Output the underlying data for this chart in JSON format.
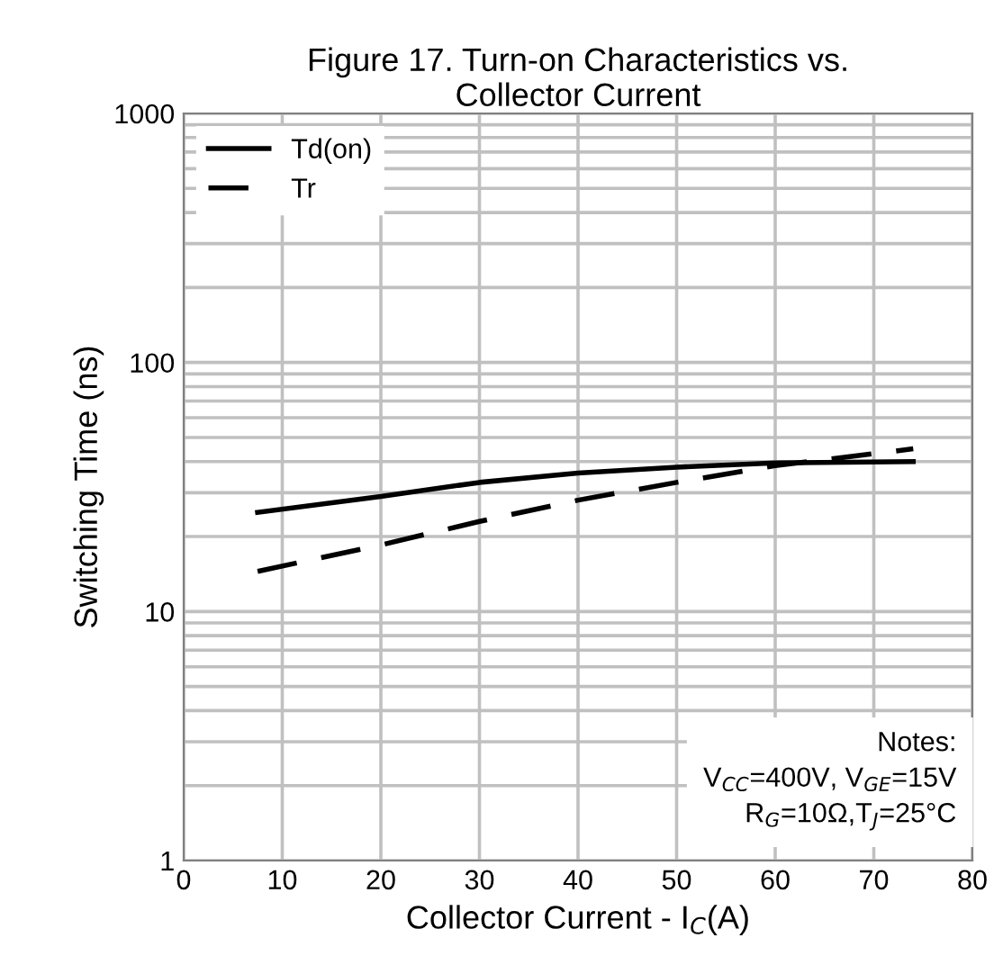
{
  "chart_data": {
    "type": "line",
    "title": "Figure 17. Turn-on Characteristics vs.\nCollector Current",
    "xlabel": "Collector Current - I$_{C}$(A)",
    "ylabel": "Switching Time (ns)",
    "series": [
      {
        "name": "Td(on)",
        "color": "#000000",
        "line_style": "solid",
        "x": [
          7.5,
          20,
          30,
          40,
          50,
          60,
          74
        ],
        "values": [
          25,
          29,
          33,
          36,
          38,
          39.5,
          40
        ]
      },
      {
        "name": "Tr",
        "color": "#000000",
        "line_style": "dashed",
        "x": [
          7.5,
          20,
          30,
          40,
          50,
          60,
          74
        ],
        "values": [
          14.5,
          18.5,
          23,
          28,
          33,
          38.5,
          45
        ]
      }
    ],
    "log": "y",
    "xlim": [
      0,
      80
    ],
    "xticks": [
      0,
      10,
      20,
      30,
      40,
      50,
      60,
      70,
      80
    ],
    "ylim": [
      1,
      1000
    ],
    "yticks": [
      1,
      10,
      100,
      1000
    ],
    "grid": true,
    "legend": "top left",
    "marker": "none",
    "annotations": [
      "Notes:\nV$_{CC}$=400V, V$_{GE}$=15V\nR$_{G}$=10Ω,T$_{J}$=25°C"
    ]
  }
}
